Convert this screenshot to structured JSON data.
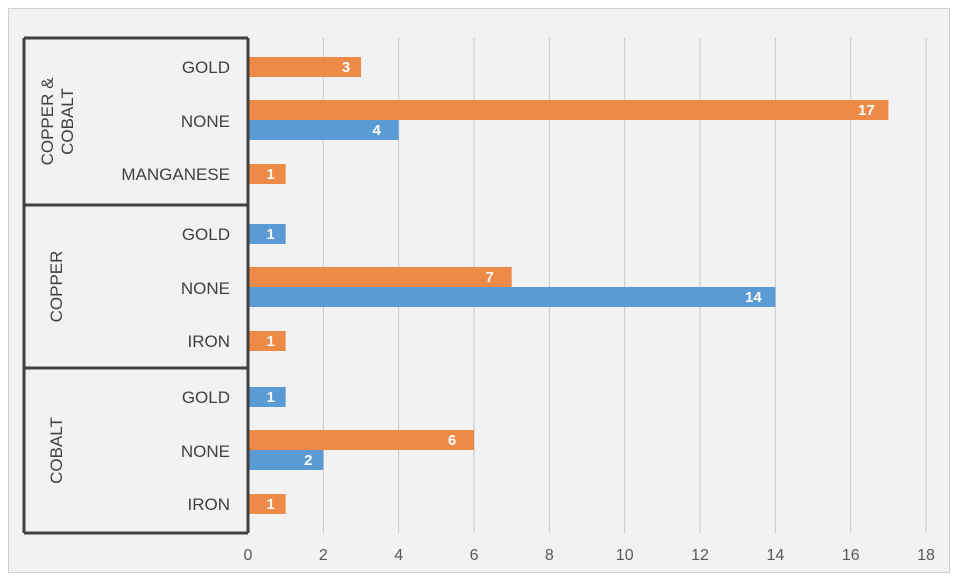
{
  "chart_data": {
    "type": "bar",
    "orientation": "horizontal",
    "groups": [
      {
        "name": "COPPER & COBALT",
        "categories": [
          "GOLD",
          "NONE",
          "MANGANESE"
        ]
      },
      {
        "name": "COPPER",
        "categories": [
          "GOLD",
          "NONE",
          "IRON"
        ]
      },
      {
        "name": "COBALT",
        "categories": [
          "GOLD",
          "NONE",
          "IRON"
        ]
      }
    ],
    "series": [
      {
        "color": "#ed8a47",
        "values": [
          [
            3,
            17,
            1
          ],
          [
            null,
            7,
            1
          ],
          [
            null,
            6,
            1
          ]
        ]
      },
      {
        "color": "#5b9bd5",
        "values": [
          [
            null,
            4,
            null
          ],
          [
            1,
            14,
            null
          ],
          [
            1,
            2,
            null
          ]
        ]
      }
    ],
    "x_ticks": [
      "0",
      "2",
      "4",
      "6",
      "8",
      "10",
      "12",
      "14",
      "16",
      "18"
    ],
    "xlim": [
      0,
      18
    ],
    "grid": "vertical",
    "legend": "none",
    "background": "#f2f2f2"
  }
}
